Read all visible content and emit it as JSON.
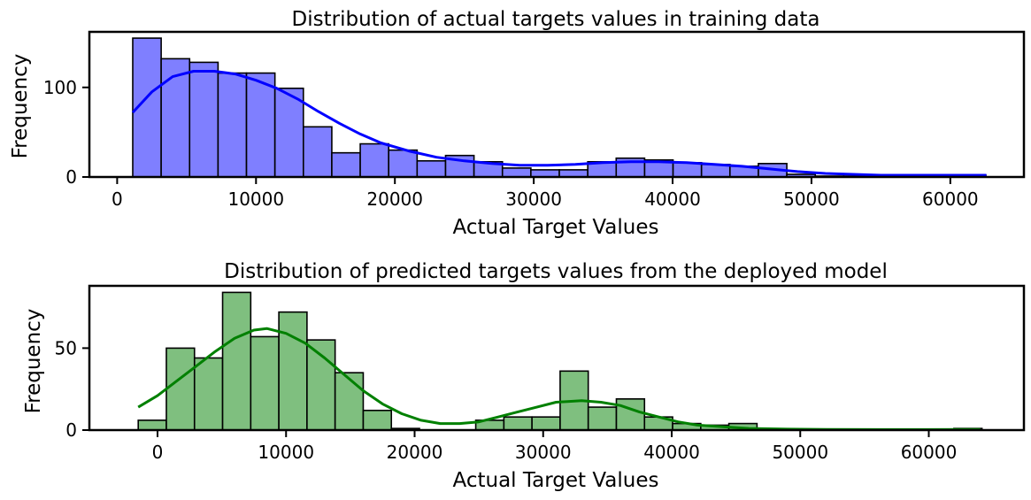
{
  "chart_data": [
    {
      "type": "histogram",
      "title": "Distribution of actual targets values in training data",
      "xlabel": "Actual Target Values",
      "ylabel": "Frequency",
      "xlim": [
        -2000,
        65300
      ],
      "ylim": [
        0,
        162
      ],
      "xticks": [
        0,
        10000,
        20000,
        30000,
        40000,
        50000,
        60000
      ],
      "yticks": [
        0,
        100
      ],
      "bar_color": "#7f7fff",
      "edge_color": "#000000",
      "kde_color": "#0000ff",
      "bin_start": 1122,
      "bin_width": 2048,
      "counts": [
        155,
        132,
        128,
        116,
        116,
        99,
        56,
        27,
        37,
        30,
        18,
        24,
        17,
        10,
        8,
        8,
        17,
        21,
        19,
        16,
        14,
        12,
        15,
        3,
        1,
        1,
        0,
        1,
        2,
        2
      ],
      "kde": [
        [
          1122,
          72
        ],
        [
          2500,
          95
        ],
        [
          4000,
          112
        ],
        [
          5500,
          118
        ],
        [
          7000,
          118
        ],
        [
          8500,
          115
        ],
        [
          10000,
          108
        ],
        [
          11500,
          99
        ],
        [
          13000,
          87
        ],
        [
          14500,
          73
        ],
        [
          16000,
          60
        ],
        [
          17500,
          48
        ],
        [
          19000,
          38
        ],
        [
          21000,
          29
        ],
        [
          23000,
          22
        ],
        [
          25000,
          18
        ],
        [
          27000,
          15
        ],
        [
          29000,
          13
        ],
        [
          31000,
          13
        ],
        [
          33000,
          14
        ],
        [
          35000,
          16
        ],
        [
          37000,
          17
        ],
        [
          39000,
          17
        ],
        [
          41000,
          16
        ],
        [
          43000,
          14
        ],
        [
          45000,
          12
        ],
        [
          47000,
          9
        ],
        [
          49000,
          6
        ],
        [
          51000,
          4
        ],
        [
          53000,
          3
        ],
        [
          55000,
          2
        ],
        [
          57000,
          2
        ],
        [
          59000,
          2
        ],
        [
          61000,
          2
        ],
        [
          62600,
          2
        ]
      ]
    },
    {
      "type": "histogram",
      "title": "Distribution of predicted targets values from the deployed model",
      "xlabel": "Actual Target Values",
      "ylabel": "Frequency",
      "xlim": [
        -5300,
        67400
      ],
      "ylim": [
        0,
        88
      ],
      "xticks": [
        0,
        10000,
        20000,
        30000,
        40000,
        50000,
        60000
      ],
      "yticks": [
        0,
        50
      ],
      "bar_color": "#7fbf7f",
      "edge_color": "#000000",
      "kde_color": "#008000",
      "bin_start": -1500,
      "bin_width": 2188,
      "counts": [
        6,
        50,
        44,
        84,
        57,
        72,
        55,
        35,
        12,
        1,
        0,
        0,
        6,
        8,
        8,
        36,
        14,
        19,
        8,
        4,
        3,
        4,
        0,
        0,
        0,
        0,
        0,
        0,
        0,
        1
      ],
      "kde": [
        [
          -1500,
          14
        ],
        [
          0,
          21
        ],
        [
          1500,
          30
        ],
        [
          3000,
          39
        ],
        [
          4500,
          48
        ],
        [
          6000,
          56
        ],
        [
          7500,
          61
        ],
        [
          8500,
          62
        ],
        [
          10000,
          59
        ],
        [
          11500,
          53
        ],
        [
          13000,
          44
        ],
        [
          14500,
          34
        ],
        [
          16000,
          24
        ],
        [
          17500,
          16
        ],
        [
          19000,
          10
        ],
        [
          20500,
          6
        ],
        [
          22000,
          4
        ],
        [
          23500,
          4
        ],
        [
          25000,
          5
        ],
        [
          26500,
          8
        ],
        [
          28000,
          11
        ],
        [
          29500,
          14
        ],
        [
          31000,
          17
        ],
        [
          33000,
          18
        ],
        [
          34500,
          17
        ],
        [
          36000,
          15
        ],
        [
          37500,
          11
        ],
        [
          39000,
          8
        ],
        [
          40500,
          5
        ],
        [
          42000,
          3
        ],
        [
          44000,
          2
        ],
        [
          46000,
          1
        ],
        [
          49000,
          0.6
        ],
        [
          52000,
          0.4
        ],
        [
          56000,
          0.3
        ],
        [
          60000,
          0.3
        ],
        [
          64000,
          0.4
        ]
      ]
    }
  ]
}
